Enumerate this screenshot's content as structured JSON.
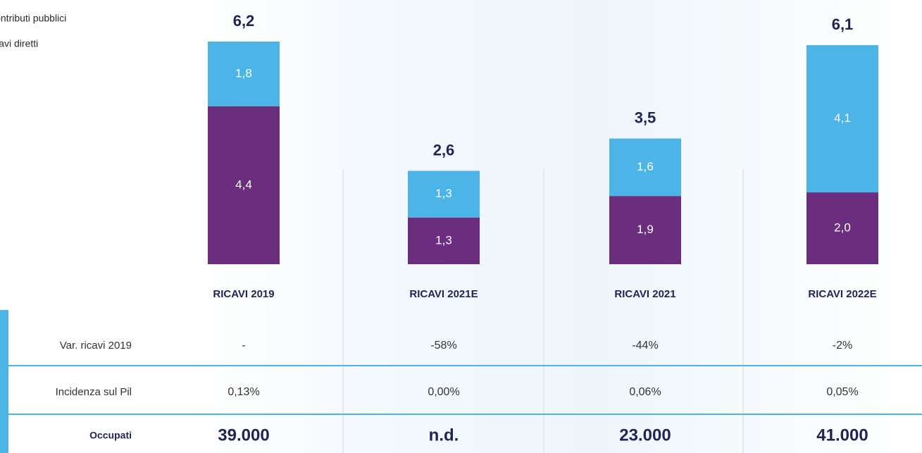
{
  "chart_data": {
    "type": "bar",
    "stacked": true,
    "categories": [
      "RICAVI 2019",
      "RICAVI 2021E",
      "RICAVI 2021",
      "RICAVI 2022E"
    ],
    "series": [
      {
        "name": "Ricavi diretti",
        "color": "#6b2d7e",
        "values": [
          4.4,
          1.3,
          1.9,
          2.0
        ],
        "value_labels": [
          "4,4",
          "1,3",
          "1,9",
          "2,0"
        ]
      },
      {
        "name": "Contributi pubblici",
        "color": "#4db4e7",
        "values": [
          1.8,
          1.3,
          1.6,
          4.1
        ],
        "value_labels": [
          "1,8",
          "1,3",
          "1,6",
          "4,1"
        ]
      }
    ],
    "totals": [
      6.2,
      2.6,
      3.5,
      6.1
    ],
    "total_labels": [
      "6,2",
      "2,6",
      "3,5",
      "6,1"
    ],
    "ylim": [
      0,
      6.2
    ]
  },
  "table": {
    "rows": [
      {
        "label": "Var. ricavi 2019",
        "cells": [
          "-",
          "-58%",
          "-44%",
          "-2%"
        ]
      },
      {
        "label": "Incidenza sul Pil",
        "cells": [
          "0,13%",
          "0,00%",
          "0,06%",
          "0,05%"
        ]
      },
      {
        "label": "Occupati",
        "cells": [
          "39.000",
          "n.d.",
          "23.000",
          "41.000"
        ]
      }
    ]
  }
}
